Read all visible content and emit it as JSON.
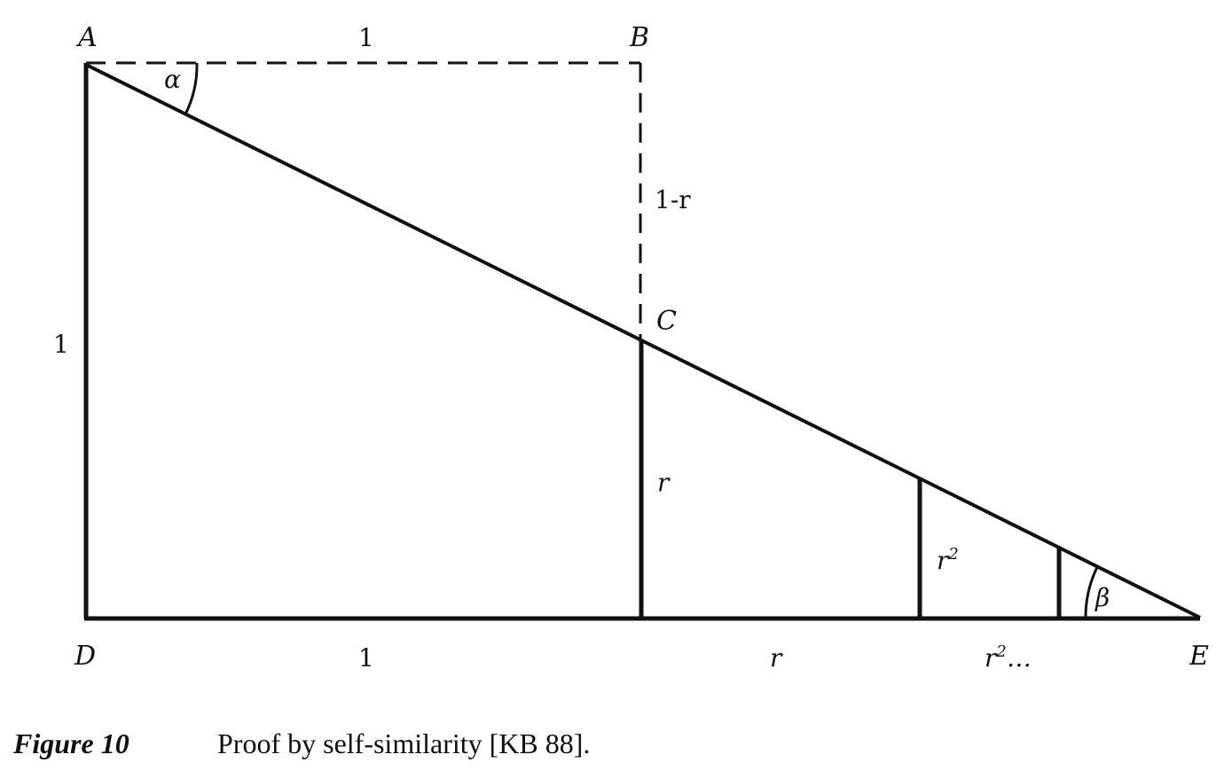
{
  "points": {
    "a": "A",
    "b": "B",
    "c": "C",
    "d": "D",
    "e": "E"
  },
  "segments": {
    "ab": "1",
    "ad": "1",
    "bc": "1-r",
    "cd_vertical": "r",
    "de_first": "1",
    "base_second": "r",
    "vertical_third": "r",
    "vertical_third_exp": "2",
    "base_third": "r",
    "base_third_exp": "2",
    "base_third_suffix": "…"
  },
  "angles": {
    "alpha": "α",
    "beta": "β"
  },
  "caption": {
    "label": "Figure 10",
    "text": "Proof by self-similarity [KB 88]."
  },
  "colors": {
    "ink": "#111111",
    "paper": "#ffffff"
  }
}
